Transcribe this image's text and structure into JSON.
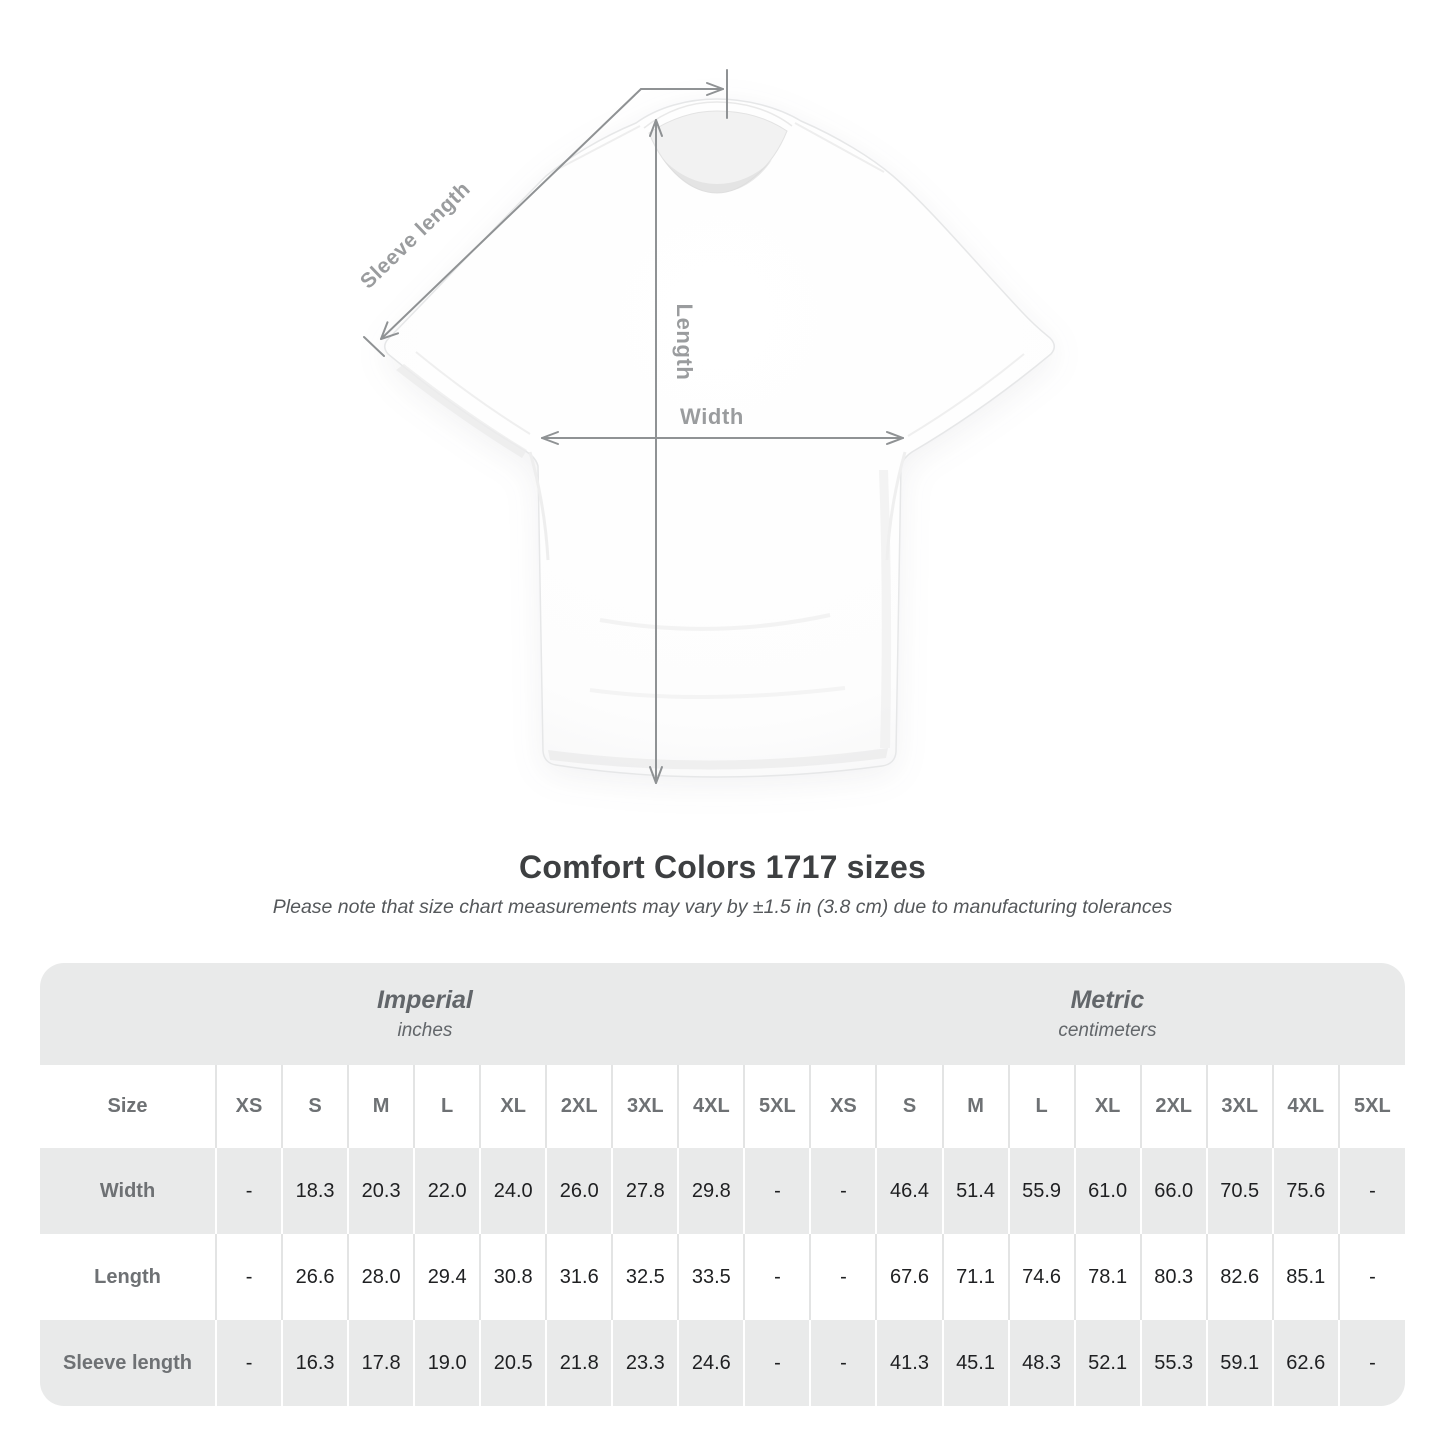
{
  "page": {
    "title": "Comfort Colors 1717 sizes",
    "subtitle": "Please note that size chart measurements may vary by ±1.5 in (3.8 cm) due to manufacturing tolerances"
  },
  "diagram": {
    "sleeve_label": "Sleeve length",
    "length_label": "Length",
    "width_label": "Width"
  },
  "colors": {
    "table_band_gray": "#e9eaea",
    "row_stripe_gray": "#e9eaea",
    "header_text_gray": "#6e7174",
    "value_text": "#1f2022",
    "annotation_gray": "#8f9294",
    "title_text": "#3d3f41"
  },
  "chart_data": {
    "type": "table",
    "title": "Comfort Colors 1717 sizes",
    "note": "Please note that size chart measurements may vary by ±1.5 in (3.8 cm) due to manufacturing tolerances",
    "corner_label": "Size",
    "sections": [
      {
        "name": "Imperial",
        "unit": "inches",
        "sizes": [
          "XS",
          "S",
          "M",
          "L",
          "XL",
          "2XL",
          "3XL",
          "4XL",
          "5XL"
        ],
        "rows": [
          {
            "label": "Width",
            "values": [
              "-",
              "18.3",
              "20.3",
              "22.0",
              "24.0",
              "26.0",
              "27.8",
              "29.8",
              "-"
            ]
          },
          {
            "label": "Length",
            "values": [
              "-",
              "26.6",
              "28.0",
              "29.4",
              "30.8",
              "31.6",
              "32.5",
              "33.5",
              "-"
            ]
          },
          {
            "label": "Sleeve length",
            "values": [
              "-",
              "16.3",
              "17.8",
              "19.0",
              "20.5",
              "21.8",
              "23.3",
              "24.6",
              "-"
            ]
          }
        ]
      },
      {
        "name": "Metric",
        "unit": "centimeters",
        "sizes": [
          "XS",
          "S",
          "M",
          "L",
          "XL",
          "2XL",
          "3XL",
          "4XL",
          "5XL"
        ],
        "rows": [
          {
            "label": "Width",
            "values": [
              "-",
              "46.4",
              "51.4",
              "55.9",
              "61.0",
              "66.0",
              "70.5",
              "75.6",
              "-"
            ]
          },
          {
            "label": "Length",
            "values": [
              "-",
              "67.6",
              "71.1",
              "74.6",
              "78.1",
              "80.3",
              "82.6",
              "85.1",
              "-"
            ]
          },
          {
            "label": "Sleeve length",
            "values": [
              "-",
              "41.3",
              "45.1",
              "48.3",
              "52.1",
              "55.3",
              "59.1",
              "62.6",
              "-"
            ]
          }
        ]
      }
    ]
  }
}
